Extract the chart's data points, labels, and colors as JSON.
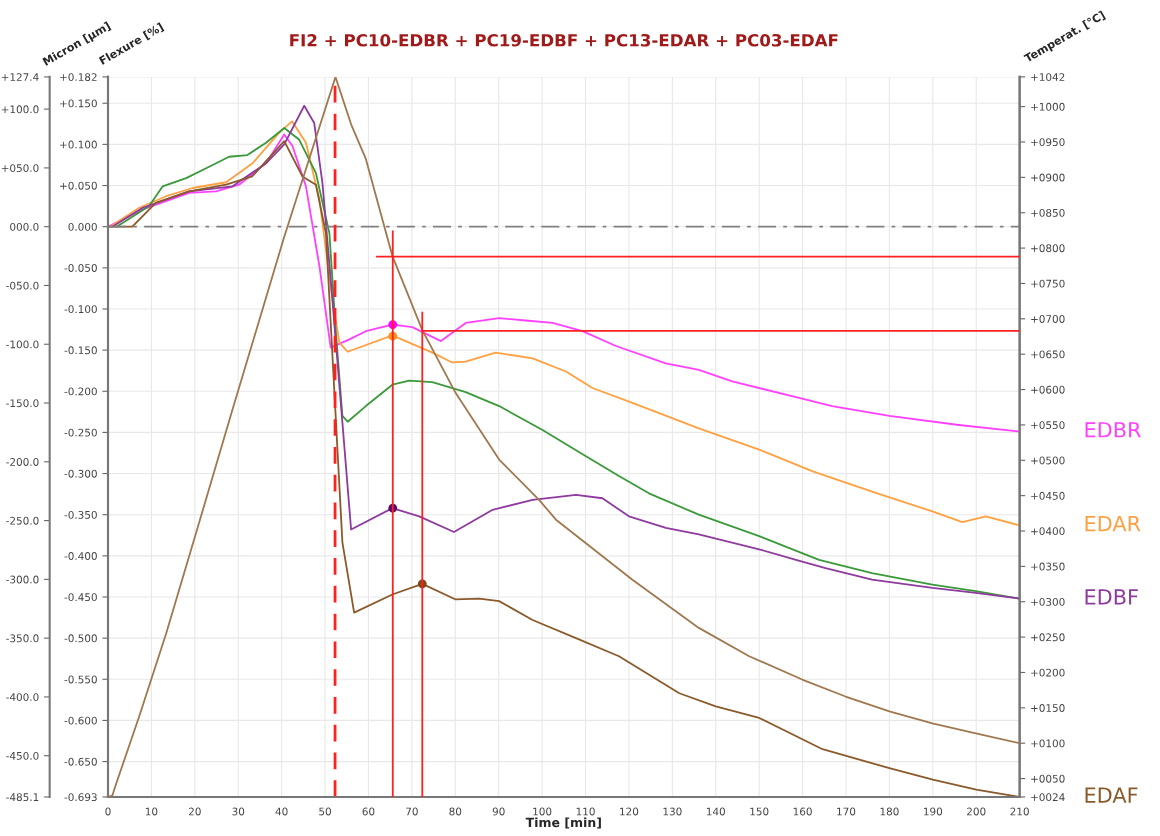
{
  "chart_data": {
    "type": "line",
    "title": "FI2 + PC10-EDBR + PC19-EDBF + PC13-EDAR + PC03-EDAF",
    "xlabel": "Time [min]",
    "ylabel": "Flexure [%]",
    "y2label": "Temperat. [°C]",
    "y3label": "Micron [µm]",
    "xlim": [
      0,
      210
    ],
    "xticks": [
      0,
      10,
      20,
      30,
      40,
      50,
      60,
      70,
      80,
      90,
      100,
      110,
      120,
      130,
      140,
      150,
      160,
      170,
      180,
      190,
      200,
      210
    ],
    "ylim": [
      -0.693,
      0.182
    ],
    "yticks": [
      {
        "value": 0.182,
        "label": "+0.182"
      },
      {
        "value": 0.15,
        "label": "+0.150"
      },
      {
        "value": 0.1,
        "label": "+0.100"
      },
      {
        "value": 0.05,
        "label": "+0.050"
      },
      {
        "value": 0,
        "label": "0.000"
      },
      {
        "value": -0.05,
        "label": "-0.050"
      },
      {
        "value": -0.1,
        "label": "-0.100"
      },
      {
        "value": -0.15,
        "label": "-0.150"
      },
      {
        "value": -0.2,
        "label": "-0.200"
      },
      {
        "value": -0.25,
        "label": "-0.250"
      },
      {
        "value": -0.3,
        "label": "-0.300"
      },
      {
        "value": -0.35,
        "label": "-0.350"
      },
      {
        "value": -0.4,
        "label": "-0.400"
      },
      {
        "value": -0.45,
        "label": "-0.450"
      },
      {
        "value": -0.5,
        "label": "-0.500"
      },
      {
        "value": -0.55,
        "label": "-0.550"
      },
      {
        "value": -0.6,
        "label": "-0.600"
      },
      {
        "value": -0.65,
        "label": "-0.650"
      },
      {
        "value": -0.693,
        "label": "-0.693"
      }
    ],
    "y2lim": [
      24,
      1042
    ],
    "y2ticks": [
      {
        "value": 1042,
        "label": "+1042"
      },
      {
        "value": 1000,
        "label": "+1000"
      },
      {
        "value": 950,
        "label": "+0950"
      },
      {
        "value": 900,
        "label": "+0900"
      },
      {
        "value": 850,
        "label": "+0850"
      },
      {
        "value": 800,
        "label": "+0800"
      },
      {
        "value": 750,
        "label": "+0750"
      },
      {
        "value": 700,
        "label": "+0700"
      },
      {
        "value": 650,
        "label": "+0650"
      },
      {
        "value": 600,
        "label": "+0600"
      },
      {
        "value": 550,
        "label": "+0550"
      },
      {
        "value": 500,
        "label": "+0500"
      },
      {
        "value": 450,
        "label": "+0450"
      },
      {
        "value": 400,
        "label": "+0400"
      },
      {
        "value": 350,
        "label": "+0350"
      },
      {
        "value": 300,
        "label": "+0300"
      },
      {
        "value": 250,
        "label": "+0250"
      },
      {
        "value": 200,
        "label": "+0200"
      },
      {
        "value": 150,
        "label": "+0150"
      },
      {
        "value": 100,
        "label": "+0100"
      },
      {
        "value": 50,
        "label": "+0050"
      },
      {
        "value": 24,
        "label": "+0024"
      }
    ],
    "y3lim": [
      -485.1,
      127.4
    ],
    "y3ticks": [
      {
        "value": 127.4,
        "label": "+127.4"
      },
      {
        "value": 100,
        "label": "+100.0"
      },
      {
        "value": 50,
        "label": "+050.0"
      },
      {
        "value": 0,
        "label": "000.0"
      },
      {
        "value": -50,
        "label": "-050.0"
      },
      {
        "value": -100,
        "label": "-100.0"
      },
      {
        "value": -150,
        "label": "-150.0"
      },
      {
        "value": -200,
        "label": "-200.0"
      },
      {
        "value": -250,
        "label": "-250.0"
      },
      {
        "value": -300,
        "label": "-300.0"
      },
      {
        "value": -350,
        "label": "-350.0"
      },
      {
        "value": -400,
        "label": "-400.0"
      },
      {
        "value": -450,
        "label": "-450.0"
      },
      {
        "value": -485.1,
        "label": "-485.1"
      }
    ],
    "grid": true,
    "ref_lines": [
      {
        "axis": "y",
        "value": 0,
        "color": "#808080",
        "line_style": "dashdot"
      },
      {
        "axis": "x",
        "value": 52.3,
        "color": "#ff2020",
        "line_style": "dashed"
      }
    ],
    "series": [
      {
        "axis": "y2",
        "color": "#a07850",
        "x": [
          0,
          1,
          1.9,
          7.2,
          13.4,
          21,
          28.7,
          40.6,
          52.4,
          56,
          59.4,
          65.5,
          72.4,
          80.1,
          90.1,
          99.3,
          103.2,
          120.8,
          136.1,
          147.7,
          159.9,
          169.9,
          180,
          189.9,
          199.9,
          210
        ],
        "values": [
          24,
          26,
          43,
          138,
          255,
          412,
          572,
          816,
          1042,
          975,
          926,
          789,
          684,
          595,
          501,
          444,
          416,
          331,
          263,
          223,
          190,
          166,
          145,
          128,
          114,
          100
        ]
      },
      {
        "name": "EDBR",
        "color": "#ff40ff",
        "x": [
          0,
          3,
          8,
          18.7,
          24.9,
          30.2,
          36.4,
          40.6,
          42.5,
          45.6,
          48.7,
          51.3,
          55.6,
          59.4,
          65.5,
          70.1,
          76.7,
          82.4,
          90.1,
          96.2,
          102.4,
          109.3,
          117,
          128.5,
          136.1,
          143.8,
          159.2,
          166.8,
          180,
          196,
          210
        ],
        "values": [
          0,
          0.008,
          0.021,
          0.041,
          0.043,
          0.051,
          0.077,
          0.112,
          0.098,
          0.049,
          -0.048,
          -0.147,
          -0.137,
          -0.127,
          -0.119,
          -0.122,
          -0.139,
          -0.117,
          -0.111,
          -0.114,
          -0.117,
          -0.127,
          -0.145,
          -0.166,
          -0.174,
          -0.188,
          -0.208,
          -0.218,
          -0.23,
          -0.241,
          -0.249
        ]
      },
      {
        "name": "EDAR",
        "color": "#ffa040",
        "x": [
          0.5,
          7.2,
          13.4,
          19.5,
          27.2,
          33.3,
          39.4,
          42.4,
          45.6,
          48.7,
          51.7,
          53.3,
          55.2,
          65.5,
          74.7,
          79.3,
          82.4,
          89.3,
          97.8,
          105.5,
          111.6,
          120.8,
          136.1,
          150,
          162.2,
          176,
          189.9,
          196.8,
          202.2,
          210
        ],
        "values": [
          0,
          0.023,
          0.037,
          0.047,
          0.054,
          0.077,
          0.114,
          0.128,
          0.102,
          0.033,
          -0.089,
          -0.141,
          -0.152,
          -0.132,
          -0.153,
          -0.165,
          -0.164,
          -0.153,
          -0.16,
          -0.176,
          -0.196,
          -0.214,
          -0.245,
          -0.271,
          -0.297,
          -0.322,
          -0.346,
          -0.359,
          -0.352,
          -0.363
        ]
      },
      {
        "color": "#3a9a3a",
        "x": [
          2,
          9.5,
          12.6,
          18,
          22.6,
          27.9,
          32.1,
          36.4,
          40.6,
          44,
          47.9,
          51,
          52.5,
          54,
          55.2,
          59.4,
          65.5,
          69.4,
          74.7,
          82.4,
          90.1,
          100.1,
          110.1,
          117.7,
          124.6,
          136.1,
          150,
          163.8,
          176,
          189.9,
          199.9,
          210
        ],
        "values": [
          0,
          0.025,
          0.049,
          0.059,
          0.071,
          0.085,
          0.087,
          0.102,
          0.12,
          0.106,
          0.065,
          -0.008,
          -0.129,
          -0.23,
          -0.237,
          -0.218,
          -0.192,
          -0.187,
          -0.189,
          -0.201,
          -0.218,
          -0.247,
          -0.279,
          -0.303,
          -0.324,
          -0.35,
          -0.376,
          -0.405,
          -0.421,
          -0.435,
          -0.443,
          -0.452
        ]
      },
      {
        "name": "EDBF",
        "color": "#8e3a9e",
        "x": [
          1,
          8,
          18.7,
          28.7,
          36.4,
          40.6,
          45.2,
          47.5,
          49.4,
          51.7,
          56,
          65.5,
          71.7,
          79.7,
          88.6,
          97.8,
          107.8,
          113.9,
          120,
          128.5,
          136.1,
          150,
          159.9,
          165.3,
          176,
          189.9,
          199.9,
          210
        ],
        "values": [
          0,
          0.023,
          0.043,
          0.049,
          0.077,
          0.1,
          0.147,
          0.126,
          0.053,
          -0.089,
          -0.368,
          -0.342,
          -0.352,
          -0.371,
          -0.344,
          -0.332,
          -0.326,
          -0.33,
          -0.352,
          -0.366,
          -0.374,
          -0.392,
          -0.407,
          -0.415,
          -0.429,
          -0.439,
          -0.445,
          -0.452
        ]
      },
      {
        "name": "EDAF",
        "color": "#8b5a2b",
        "x": [
          0,
          5.6,
          11,
          18.7,
          27.2,
          33.2,
          40.6,
          44.8,
          47.9,
          50.2,
          54,
          56.7,
          65.5,
          72.4,
          80.1,
          85.5,
          90.1,
          97.8,
          107.8,
          117.7,
          131.6,
          140,
          150,
          164.6,
          180,
          190,
          200,
          210
        ],
        "values": [
          0,
          0,
          0.029,
          0.043,
          0.051,
          0.061,
          0.104,
          0.061,
          0.051,
          -0.008,
          -0.384,
          -0.469,
          -0.447,
          -0.434,
          -0.453,
          -0.452,
          -0.455,
          -0.478,
          -0.5,
          -0.522,
          -0.567,
          -0.583,
          -0.597,
          -0.635,
          -0.658,
          -0.672,
          -0.684,
          -0.693
        ]
      },
      {
        "axis": "y2",
        "color": "#ff2020",
        "x": [
          65.6,
          65.6
        ],
        "values": [
          824,
          24
        ]
      },
      {
        "axis": "y2",
        "color": "#ff2020",
        "x": [
          72.4,
          72.4
        ],
        "values": [
          709,
          24
        ]
      },
      {
        "axis": "y2",
        "color": "#ff2020",
        "x": [
          61.9,
          210
        ],
        "values": [
          788,
          788
        ]
      },
      {
        "axis": "y2",
        "color": "#ff2020",
        "x": [
          72.4,
          210
        ],
        "values": [
          683,
          683
        ]
      },
      {
        "type": "scatter",
        "marker": "circle",
        "colors": [
          "#ff00ff",
          "#ff9020",
          "#5a0a6a",
          "#7a4a1a"
        ],
        "x": [
          65.6,
          65.6,
          65.6,
          72.4
        ],
        "values": [
          -0.119,
          -0.133,
          -0.342,
          -0.434
        ]
      }
    ]
  }
}
